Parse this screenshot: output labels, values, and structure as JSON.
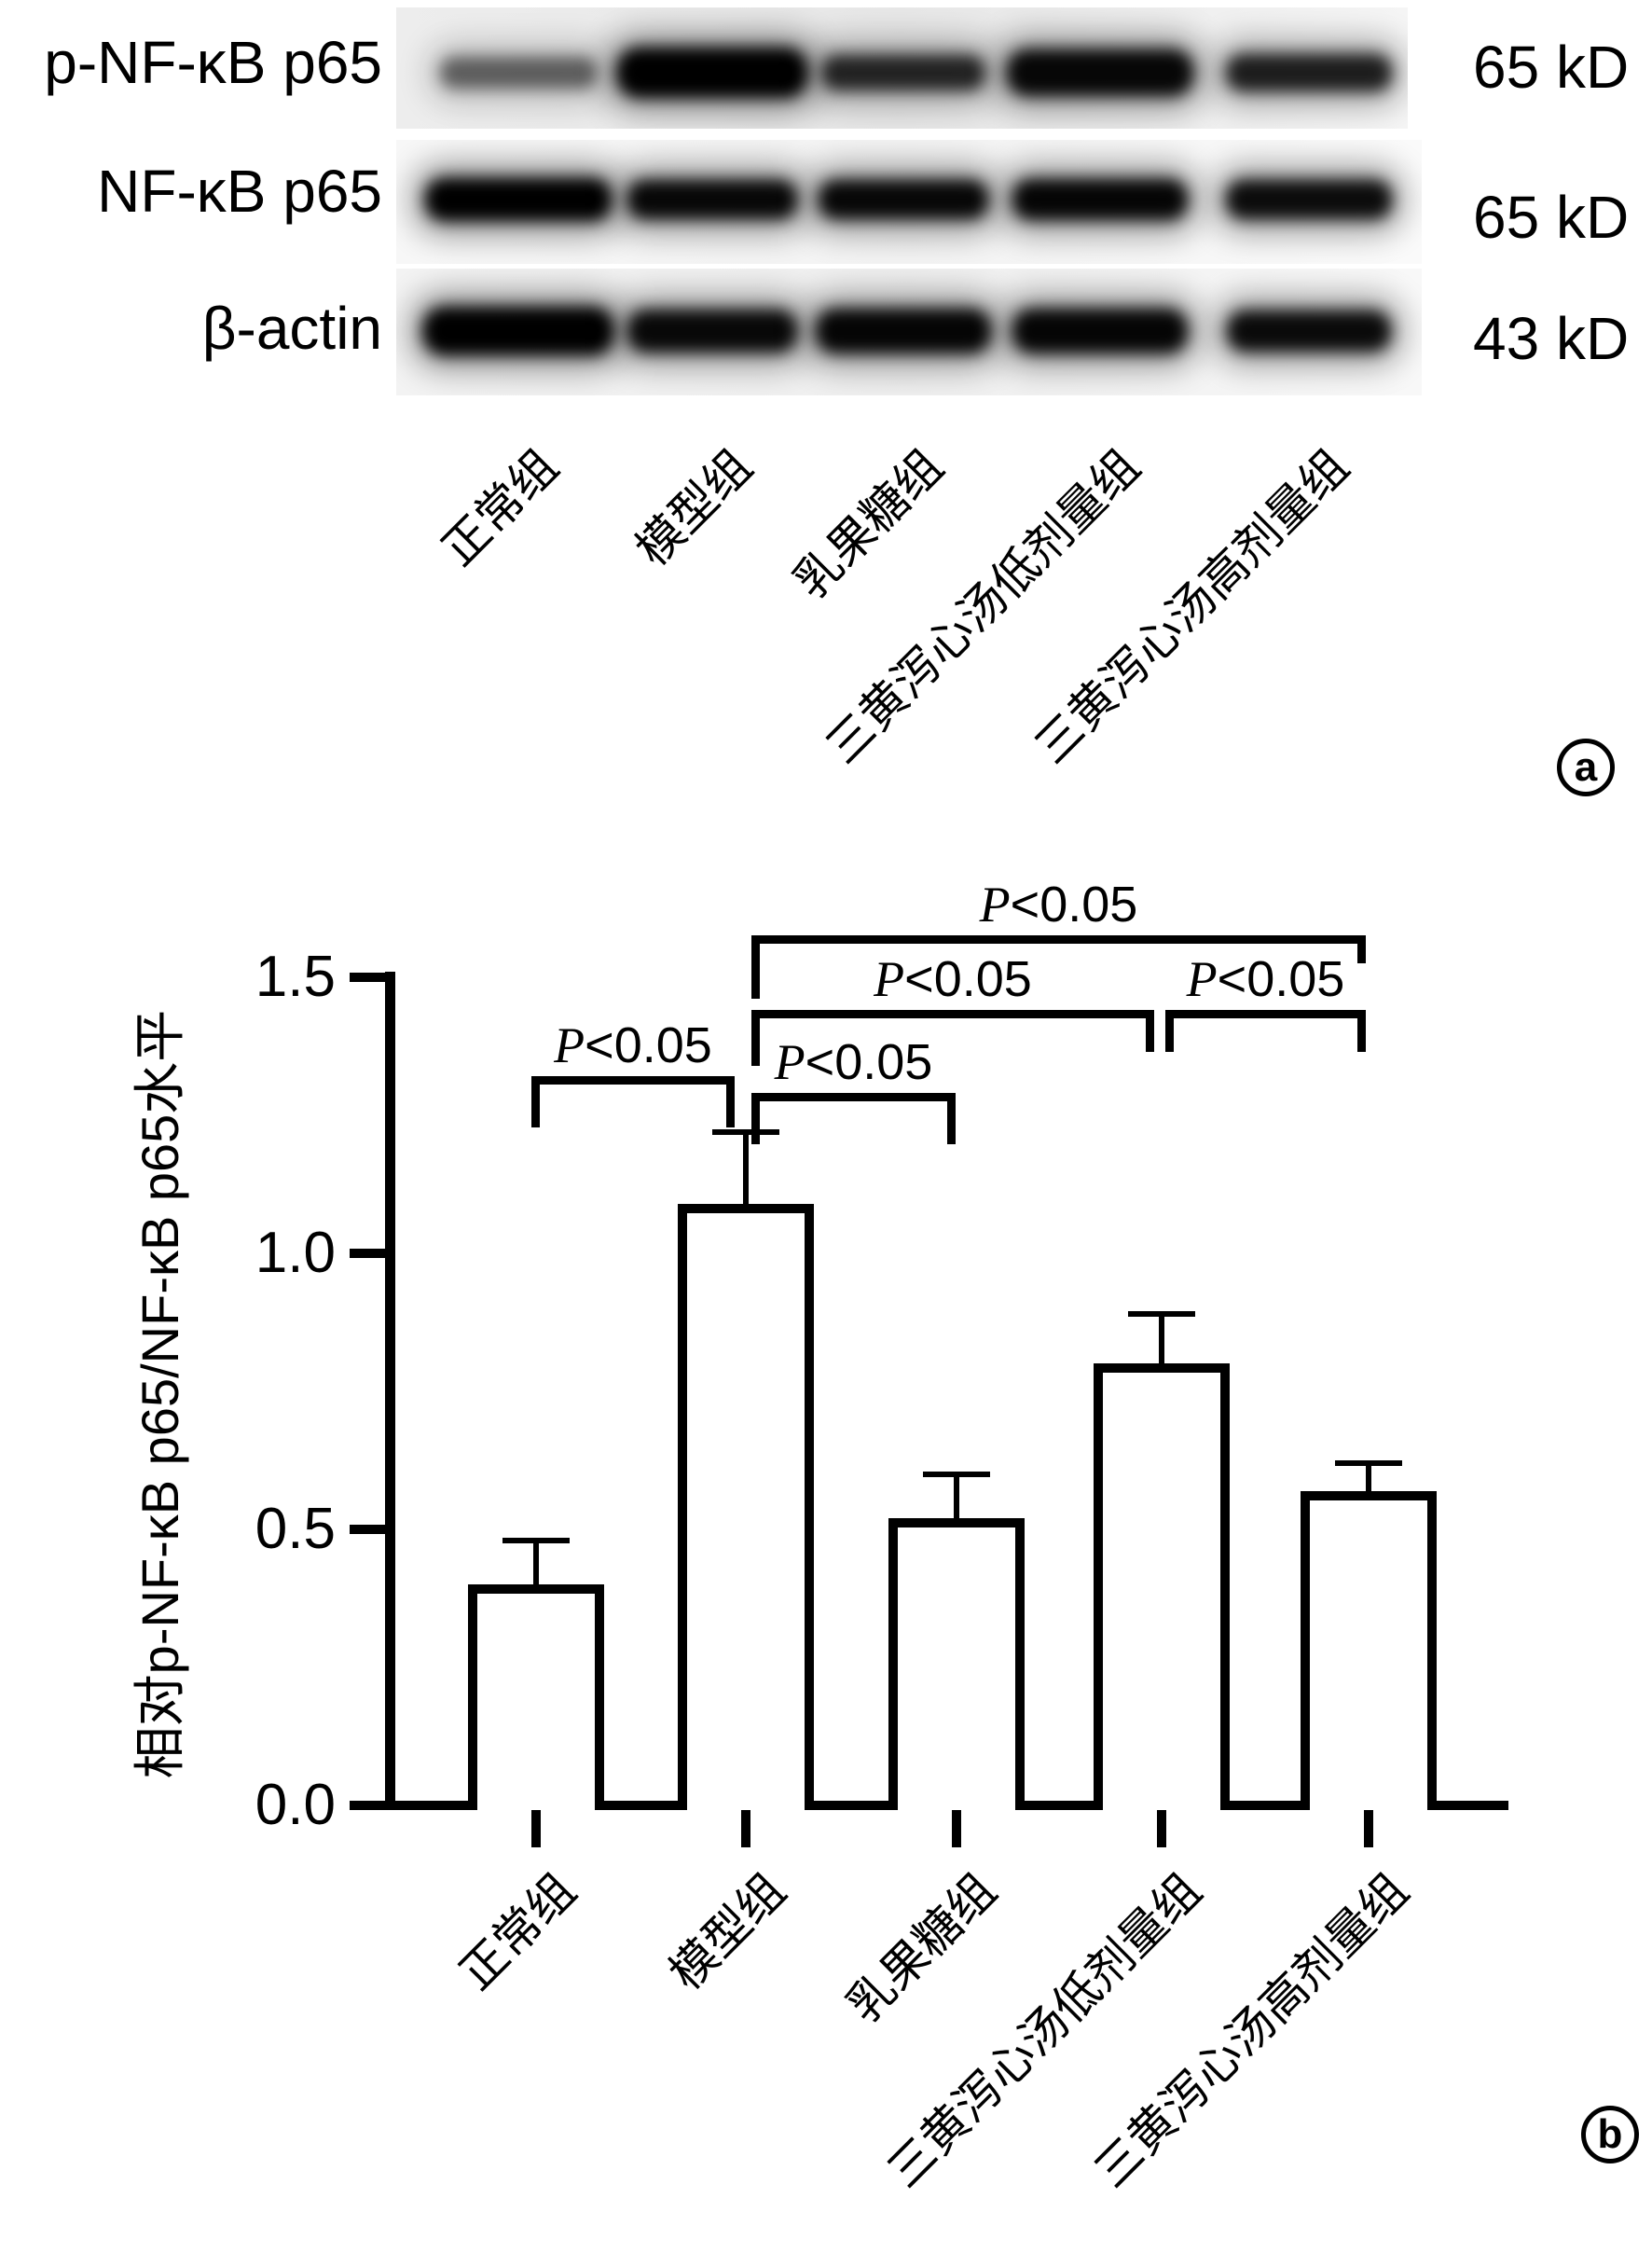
{
  "figure": {
    "panel_a": {
      "marker": "a",
      "wb_rows": [
        {
          "label": "p-NF-κB p65",
          "weight_label": "65 kD",
          "band_intensities": [
            0.5,
            1.0,
            0.78,
            0.95,
            0.82
          ]
        },
        {
          "label": "NF-κB p65",
          "weight_label": "65 kD",
          "band_intensities": [
            1.0,
            0.95,
            0.95,
            0.96,
            0.92
          ]
        },
        {
          "label": "β-actin",
          "weight_label": "43 kD",
          "band_intensities": [
            1.0,
            0.94,
            0.96,
            0.96,
            0.93
          ]
        }
      ],
      "lane_labels": [
        "正常组",
        "模型组",
        "乳果糖组",
        "三黄泻心汤低剂量组",
        "三黄泻心汤高剂量组"
      ]
    },
    "panel_b": {
      "marker": "b"
    }
  },
  "chart_data": {
    "type": "bar",
    "categories": [
      "正常组",
      "模型组",
      "乳果糖组",
      "三黄泻心汤低剂量组",
      "三黄泻心汤高剂量组"
    ],
    "values": [
      0.4,
      1.09,
      0.52,
      0.8,
      0.57
    ],
    "errors_plus": [
      0.08,
      0.13,
      0.08,
      0.09,
      0.05
    ],
    "title": "",
    "xlabel": "",
    "ylabel": "相对p-NF-κB p65/NF-κB p65水平",
    "ylim": [
      0,
      1.5
    ],
    "yticks": [
      0,
      0.5,
      1.0,
      1.5
    ],
    "grid": false,
    "legend_position": "none",
    "bar_fill": "#ffffff",
    "bar_edge": "#000000",
    "significance": [
      {
        "group1": "正常组",
        "group2": "模型组",
        "label": "P<0.05"
      },
      {
        "group1": "模型组",
        "group2": "乳果糖组",
        "label": "P<0.05"
      },
      {
        "group1": "模型组",
        "group2": "三黄泻心汤低剂量组",
        "label": "P<0.05"
      },
      {
        "group1": "三黄泻心汤低剂量组",
        "group2": "三黄泻心汤高剂量组",
        "label": "P<0.05"
      },
      {
        "group1": "模型组",
        "group2": "三黄泻心汤高剂量组",
        "label": "P<0.05"
      }
    ]
  }
}
